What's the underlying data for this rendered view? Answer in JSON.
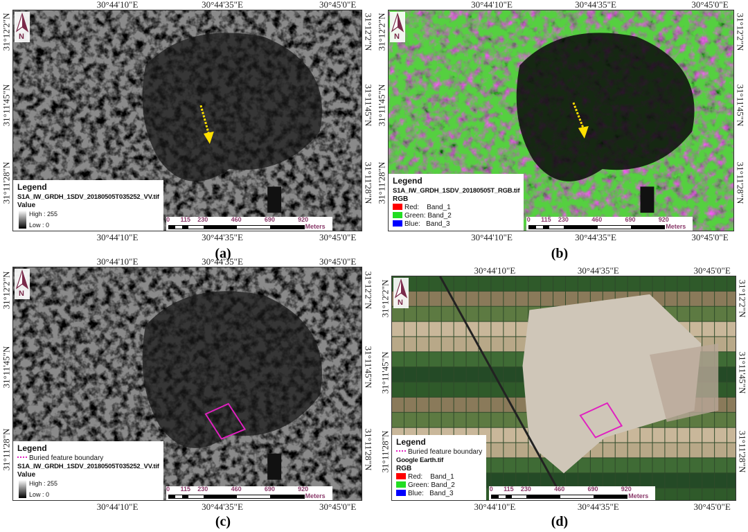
{
  "panels": [
    {
      "caption": "(a)",
      "style": "sar",
      "top_labels": [
        "30°44'10\"E",
        "30°44'35\"E",
        "30°45'0\"E"
      ],
      "bottom_labels": [
        "30°44'10\"E",
        "30°44'35\"E",
        "30°45'0\"E"
      ],
      "left_labels": [
        "31°12'2\"N",
        "31°11'45\"N",
        "31°11'28\"N"
      ],
      "right_labels": [
        "31°12'2\"N",
        "31°11'45\"N",
        "31°11'28\"N"
      ],
      "north": "N",
      "legend": {
        "title": "Legend",
        "layer": "S1A_IW_GRDH_1SDV_20180505T035252_VV.tif",
        "value_heading": "Value",
        "high": "High : 255",
        "low": "Low : 0"
      },
      "scale": {
        "ticks": [
          "0",
          "115",
          "230",
          "460",
          "690",
          "920"
        ],
        "unit": "Meters"
      },
      "annotation": "yellow-arrow"
    },
    {
      "caption": "(b)",
      "style": "rgb",
      "top_labels": [
        "30°44'10\"E",
        "30°44'35\"E",
        "30°45'0\"E"
      ],
      "bottom_labels": [
        "30°44'10\"E",
        "30°44'35\"E",
        "30°45'0\"E"
      ],
      "left_labels": [
        "31°12'2\"N",
        "31°11'45\"N",
        "31°11'28\"N"
      ],
      "right_labels": [
        "31°12'2\"N",
        "31°11'45\"N",
        "31°11'28\"N"
      ],
      "north": "N",
      "legend": {
        "title": "Legend",
        "layer": "S1A_IW_GRDH_1SDV_20180505T_RGB.tif",
        "rgb_heading": "RGB",
        "bands": [
          {
            "label": "Red:    Band_1",
            "color": "#ff0000"
          },
          {
            "label": "Green: Band_2",
            "color": "#22dd22"
          },
          {
            "label": "Blue:   Band_3",
            "color": "#0000ff"
          }
        ]
      },
      "scale": {
        "ticks": [
          "0",
          "115",
          "230",
          "460",
          "690",
          "920"
        ],
        "unit": "Meters"
      },
      "annotation": "yellow-arrow"
    },
    {
      "caption": "(c)",
      "style": "sar",
      "top_labels": [
        "30°44'10\"E",
        "30°44'35\"E",
        "30°45'0\"E"
      ],
      "bottom_labels": [
        "30°44'10\"E",
        "30°44'35\"E",
        "30°45'0\"E"
      ],
      "left_labels": [
        "31°12'2\"N",
        "31°11'45\"N",
        "31°11'28\"N"
      ],
      "right_labels": [
        "31°12'2\"N",
        "31°11'45\"N",
        "31°11'28\"N"
      ],
      "north": "N",
      "legend": {
        "title": "Legend",
        "boundary": "Buried feature boundary",
        "layer": "S1A_IW_GRDH_1SDV_20180505T035252_VV.tif",
        "value_heading": "Value",
        "high": "High : 255",
        "low": "Low : 0"
      },
      "scale": {
        "ticks": [
          "0",
          "115",
          "230",
          "460",
          "690",
          "920"
        ],
        "unit": "Meters"
      },
      "annotation": "boundary"
    },
    {
      "caption": "(d)",
      "style": "optical",
      "top_labels": [
        "30°44'10\"E",
        "30°44'35\"E",
        "30°45'0\"E"
      ],
      "bottom_labels": [
        "30°44'10\"E",
        "30°44'35\"E",
        "30°45'0\"E"
      ],
      "left_labels": [
        "31°12'2\"N",
        "31°11'45\"N",
        "31°11'28\"N"
      ],
      "right_labels": [
        "31°12'2\"N",
        "31°11'45\"N",
        "31°11'28\"N"
      ],
      "north": "N",
      "legend": {
        "title": "Legend",
        "boundary": "Buried feature boundary",
        "layer": "Google Earth.tif",
        "rgb_heading": "RGB",
        "bands": [
          {
            "label": "Red:    Band_1",
            "color": "#ff0000"
          },
          {
            "label": "Green: Band_2",
            "color": "#22dd22"
          },
          {
            "label": "Blue:   Band_3",
            "color": "#0000ff"
          }
        ]
      },
      "scale": {
        "ticks": [
          "0",
          "115",
          "230",
          "460",
          "690",
          "920"
        ],
        "unit": "Meters"
      },
      "annotation": "boundary"
    }
  ],
  "colors": {
    "arrow": "#ffe000",
    "boundary": "#e020c0",
    "scale_text": "#8a3a6a"
  }
}
